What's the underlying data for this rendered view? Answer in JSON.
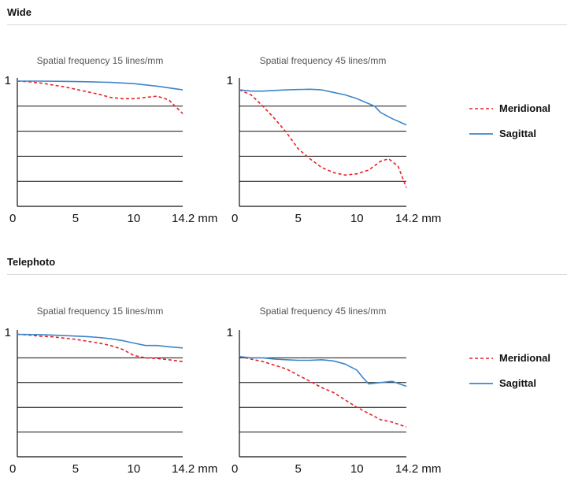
{
  "sections": [
    {
      "title": "Wide"
    },
    {
      "title": "Telephoto"
    }
  ],
  "colors": {
    "meridional": "#e8202a",
    "sagittal": "#3b86c8",
    "gridline": "#111111",
    "axis": "#111111"
  },
  "legend": {
    "meridional": "Meridional",
    "sagittal": "Sagittal",
    "placement": "right"
  },
  "chart_data": [
    {
      "type": "line",
      "section": "Wide",
      "title": "Spatial frequency 15 lines/mm",
      "xlabel": "",
      "ylabel": "",
      "xlim": [
        0,
        14.2
      ],
      "ylim": [
        0,
        1
      ],
      "x_ticks": [
        "0",
        "5",
        "10",
        "14.2 mm"
      ],
      "y_ticks": [
        "1"
      ],
      "gridlines_y": [
        0.8,
        0.6,
        0.4,
        0.2
      ],
      "series": [
        {
          "name": "Meridional",
          "style": "dashed",
          "x": [
            0,
            1,
            2,
            3,
            4,
            5,
            6,
            7,
            8,
            9,
            10,
            11,
            12,
            13,
            14.2
          ],
          "y": [
            1.0,
            0.995,
            0.985,
            0.97,
            0.955,
            0.935,
            0.915,
            0.895,
            0.87,
            0.86,
            0.86,
            0.87,
            0.88,
            0.85,
            0.74
          ]
        },
        {
          "name": "Sagittal",
          "style": "solid",
          "x": [
            0,
            2,
            4,
            6,
            8,
            10,
            12,
            14.2
          ],
          "y": [
            1.0,
            1.0,
            0.998,
            0.995,
            0.99,
            0.98,
            0.96,
            0.93
          ]
        }
      ]
    },
    {
      "type": "line",
      "section": "Wide",
      "title": "Spatial frequency 45 lines/mm",
      "xlabel": "",
      "ylabel": "",
      "xlim": [
        0,
        14.2
      ],
      "ylim": [
        0,
        1
      ],
      "x_ticks": [
        "0",
        "5",
        "10",
        "14.2 mm"
      ],
      "y_ticks": [
        "1"
      ],
      "gridlines_y": [
        0.8,
        0.6,
        0.4,
        0.2
      ],
      "series": [
        {
          "name": "Meridional",
          "style": "dashed",
          "x": [
            0,
            1,
            2,
            3,
            4,
            5,
            6,
            7,
            8,
            9,
            10,
            11,
            12,
            12.7,
            13.5,
            14.2
          ],
          "y": [
            0.93,
            0.89,
            0.8,
            0.7,
            0.59,
            0.46,
            0.38,
            0.31,
            0.27,
            0.25,
            0.26,
            0.29,
            0.36,
            0.38,
            0.32,
            0.15
          ]
        },
        {
          "name": "Sagittal",
          "style": "solid",
          "x": [
            0,
            1,
            2,
            4,
            6,
            7,
            8,
            9,
            10,
            11,
            11.5,
            12,
            13,
            14.2
          ],
          "y": [
            0.93,
            0.92,
            0.92,
            0.93,
            0.935,
            0.93,
            0.91,
            0.89,
            0.86,
            0.82,
            0.8,
            0.75,
            0.7,
            0.65
          ]
        }
      ]
    },
    {
      "type": "line",
      "section": "Telephoto",
      "title": "Spatial frequency 15 lines/mm",
      "xlabel": "",
      "ylabel": "",
      "xlim": [
        0,
        14.2
      ],
      "ylim": [
        0,
        1
      ],
      "x_ticks": [
        "0",
        "5",
        "10",
        "14.2 mm"
      ],
      "y_ticks": [
        "1"
      ],
      "gridlines_y": [
        0.8,
        0.6,
        0.4,
        0.2
      ],
      "series": [
        {
          "name": "Meridional",
          "style": "dashed",
          "x": [
            0,
            1,
            2,
            3,
            4,
            5,
            6,
            7,
            8,
            9,
            10,
            11,
            12,
            13,
            14.2
          ],
          "y": [
            0.99,
            0.985,
            0.975,
            0.97,
            0.96,
            0.95,
            0.935,
            0.92,
            0.9,
            0.87,
            0.82,
            0.8,
            0.795,
            0.785,
            0.77
          ]
        },
        {
          "name": "Sagittal",
          "style": "solid",
          "x": [
            0,
            2,
            4,
            6,
            7,
            8,
            9,
            10,
            11,
            12,
            13,
            14.2
          ],
          "y": [
            0.99,
            0.988,
            0.98,
            0.972,
            0.965,
            0.955,
            0.94,
            0.92,
            0.9,
            0.9,
            0.89,
            0.88
          ]
        }
      ]
    },
    {
      "type": "line",
      "section": "Telephoto",
      "title": "Spatial frequency 45 lines/mm",
      "xlabel": "",
      "ylabel": "",
      "xlim": [
        0,
        14.2
      ],
      "ylim": [
        0,
        1
      ],
      "x_ticks": [
        "0",
        "5",
        "10",
        "14.2 mm"
      ],
      "y_ticks": [
        "1"
      ],
      "gridlines_y": [
        0.8,
        0.6,
        0.4,
        0.2
      ],
      "series": [
        {
          "name": "Meridional",
          "style": "dashed",
          "x": [
            0,
            1,
            2,
            3,
            4,
            5,
            6,
            7,
            8,
            9,
            10,
            11,
            12,
            13,
            14.2
          ],
          "y": [
            0.81,
            0.79,
            0.77,
            0.74,
            0.71,
            0.66,
            0.61,
            0.56,
            0.52,
            0.46,
            0.4,
            0.35,
            0.3,
            0.28,
            0.24
          ]
        },
        {
          "name": "Sagittal",
          "style": "solid",
          "x": [
            0,
            1,
            2,
            3,
            4,
            5,
            6,
            7,
            8,
            9,
            10,
            10.5,
            11,
            12,
            13,
            14.2
          ],
          "y": [
            0.81,
            0.8,
            0.8,
            0.79,
            0.785,
            0.78,
            0.78,
            0.785,
            0.775,
            0.75,
            0.7,
            0.64,
            0.59,
            0.6,
            0.61,
            0.57
          ]
        }
      ]
    }
  ]
}
